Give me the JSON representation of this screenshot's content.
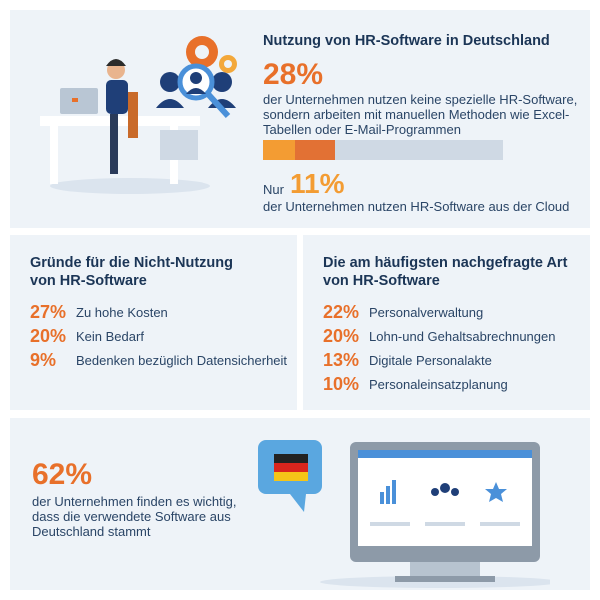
{
  "top": {
    "title": "Nutzung von HR-Software in Deutschland",
    "stat1": {
      "value": "28%",
      "text": "der Unternehmen nutzen keine spezielle HR-Software, sondern arbeiten mit manuellen Methoden wie Excel-Tabellen oder E-Mail-Programmen"
    },
    "stat2": {
      "prefix": "Nur",
      "value": "11%",
      "text": "der Unternehmen nutzen HR-Software aus der Cloud"
    }
  },
  "reasons": {
    "title": "Gründe für die Nicht-Nutzung von HR-Software",
    "items": [
      {
        "value": "27%",
        "label": "Zu hohe Kosten"
      },
      {
        "value": "20%",
        "label": "Kein Bedarf"
      },
      {
        "value": "9%",
        "label": "Bedenken bezüglich Datensicherheit"
      }
    ]
  },
  "types": {
    "title": "Die am häufigsten nachgefragte Art von HR-Software",
    "items": [
      {
        "value": "22%",
        "label": "Personalverwaltung"
      },
      {
        "value": "20%",
        "label": "Lohn-und Gehaltsabrechnungen"
      },
      {
        "value": "13%",
        "label": "Digitale Personalakte"
      },
      {
        "value": "10%",
        "label": "Personaleinsatzplanung"
      }
    ]
  },
  "bottom": {
    "value": "62%",
    "text": "der Unternehmen finden es wichtig, dass die verwendete Software aus Deutschland stammt"
  }
}
